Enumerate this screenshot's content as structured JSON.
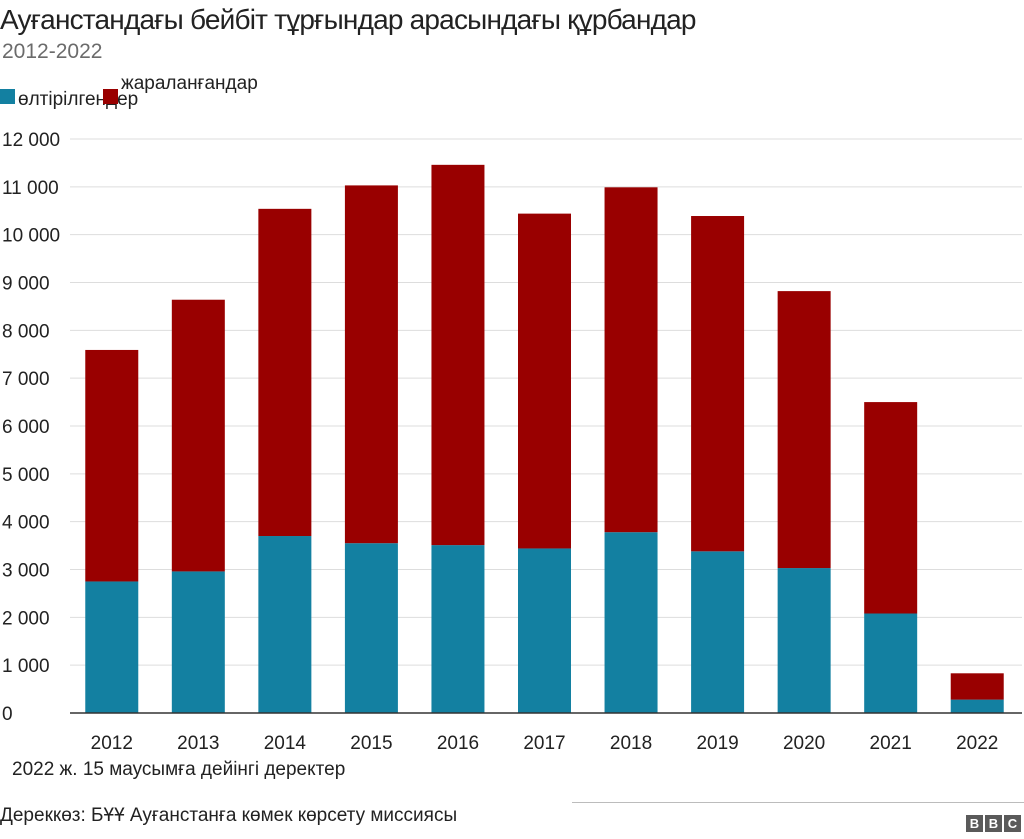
{
  "chart_data": {
    "type": "bar",
    "stacked": true,
    "title": "Ауғанстандағы бейбіт тұрғындар арасындағы құрбандар",
    "subtitle": "2012-2022",
    "categories": [
      "2012",
      "2013",
      "2014",
      "2015",
      "2016",
      "2017",
      "2018",
      "2019",
      "2020",
      "2021",
      "2022"
    ],
    "series": [
      {
        "name": "өлтірілгендер",
        "color": "#1380a1",
        "values": [
          2750,
          2960,
          3700,
          3550,
          3510,
          3440,
          3780,
          3380,
          3030,
          2080,
          280
        ]
      },
      {
        "name": "жараланғандар",
        "color": "#990000",
        "values": [
          4840,
          5680,
          6840,
          7480,
          7950,
          7000,
          7210,
          7010,
          5790,
          4420,
          550
        ]
      }
    ],
    "ylim": [
      0,
      12000
    ],
    "yticks": [
      0,
      1000,
      2000,
      3000,
      4000,
      5000,
      6000,
      7000,
      8000,
      9000,
      10000,
      11000,
      12000
    ],
    "ytick_labels": [
      "0",
      "1 000",
      "2 000",
      "3 000",
      "4 000",
      "5 000",
      "6 000",
      "7 000",
      "8 000",
      "9 000",
      "10 000",
      "11 000",
      "12 000"
    ],
    "grid": "horizontal",
    "legend_position": "top-left",
    "xlabel": "",
    "ylabel": "",
    "note": "2022 ж. 15 маусымға дейінгі деректер",
    "source": "Дереккөз: БҰҰ Ауғанстанға көмек көрсету миссиясы"
  },
  "branding": {
    "logo_letters": [
      "B",
      "B",
      "C"
    ],
    "logo_color": "#5a5a5a"
  }
}
